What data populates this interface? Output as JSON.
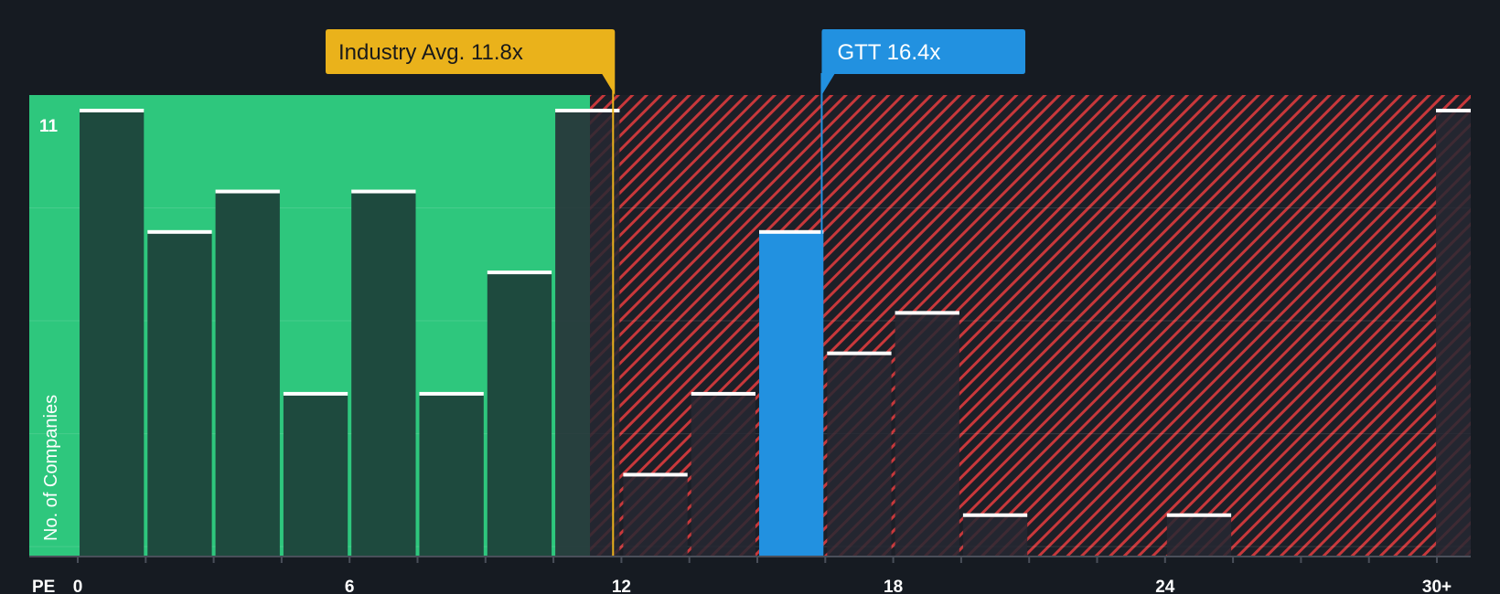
{
  "chart_data": {
    "type": "bar",
    "xlabel": "PE",
    "ylabel": "No. of Companies",
    "x_ticks": [
      "0",
      "6",
      "12",
      "18",
      "24",
      "30+"
    ],
    "y_max_label": "11",
    "ylim": [
      0,
      11
    ],
    "bins": [
      {
        "range": "0-1.5",
        "value": 11
      },
      {
        "range": "1.5-3",
        "value": 8
      },
      {
        "range": "3-4.5",
        "value": 9
      },
      {
        "range": "4.5-6",
        "value": 4
      },
      {
        "range": "6-7.5",
        "value": 9
      },
      {
        "range": "7.5-9",
        "value": 4
      },
      {
        "range": "9-10.5",
        "value": 7
      },
      {
        "range": "10.5-12",
        "value": 11
      },
      {
        "range": "12-13.5",
        "value": 2
      },
      {
        "range": "13.5-15",
        "value": 4
      },
      {
        "range": "15-16.5",
        "value": 8,
        "highlight": true
      },
      {
        "range": "16.5-18",
        "value": 5
      },
      {
        "range": "18-19.5",
        "value": 6
      },
      {
        "range": "19.5-21",
        "value": 1
      },
      {
        "range": "21-22.5",
        "value": 0
      },
      {
        "range": "22.5-24",
        "value": 0
      },
      {
        "range": "24-25.5",
        "value": 1
      },
      {
        "range": "25.5-27",
        "value": 0
      },
      {
        "range": "27-28.5",
        "value": 0
      },
      {
        "range": "28.5-30",
        "value": 0
      },
      {
        "range": "30+",
        "value": 11
      }
    ],
    "industry_avg": {
      "label": "Industry Avg. 11.8x",
      "value": 11.8
    },
    "company": {
      "label": "GTT 16.4x",
      "value": 16.4
    }
  },
  "colors": {
    "background": "#161b22",
    "green_zone": "#2ec77d",
    "green_bar": "#1e4a3e",
    "red_stripe": "#c8383b",
    "red_bar": "#262832",
    "company_bar": "#2291e0",
    "industry_label_bg": "#eab21b",
    "company_label_bg": "#2291e0",
    "cap": "#ffffff"
  }
}
